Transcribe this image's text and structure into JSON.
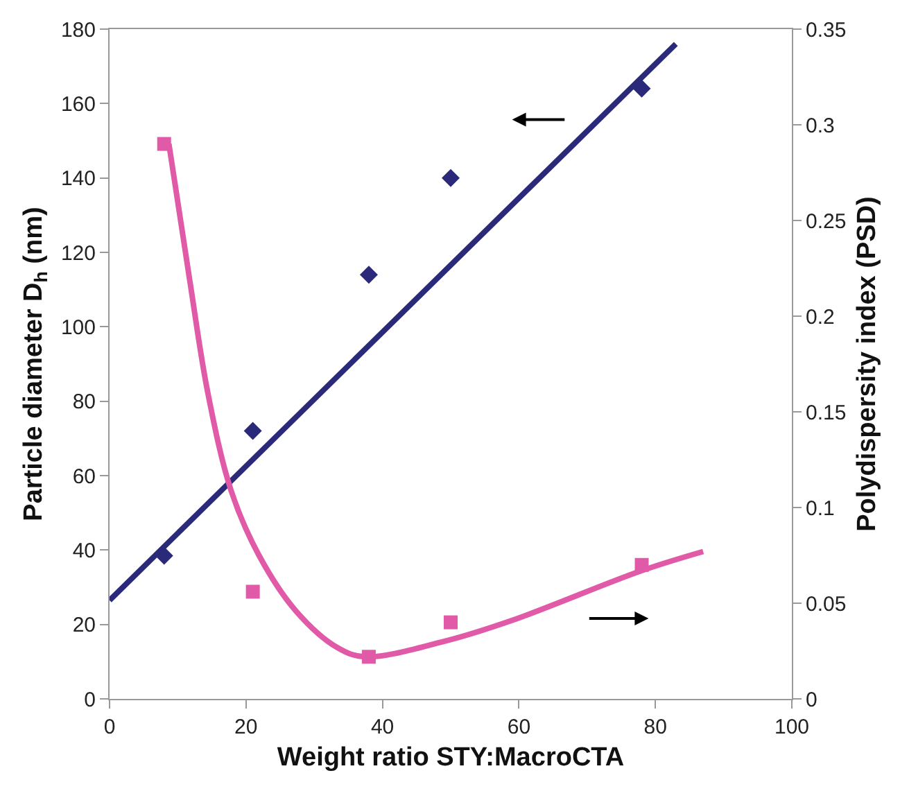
{
  "chart_data": {
    "type": "scatter",
    "xlabel": "Weight ratio STY:MacroCTA",
    "ylabel": "Particle diameter D$_{h}$ (nm)",
    "y2label": "Polydispersity index (PSD)",
    "xlim": [
      0,
      100
    ],
    "xticks": [
      0,
      20,
      40,
      60,
      80,
      100
    ],
    "ylim": [
      0,
      180
    ],
    "yticks": [
      0,
      20,
      40,
      60,
      80,
      100,
      120,
      140,
      160,
      180
    ],
    "y2lim": [
      0,
      0.35
    ],
    "y2ticks": [
      0,
      0.05,
      0.1,
      0.15,
      0.2,
      0.25,
      0.3,
      0.35
    ],
    "series": [
      {
        "marker": "diamond",
        "color": "#2b2a7a",
        "x": [
          8,
          21,
          38,
          50,
          78
        ],
        "values": [
          38.5,
          72,
          114,
          140,
          164
        ]
      },
      {
        "type": "line",
        "color": "#2b2a7a",
        "x": [
          0,
          83
        ],
        "values": [
          26.5,
          176
        ]
      },
      {
        "marker": "square",
        "color": "#e05aa8",
        "axis": "y2",
        "x": [
          8,
          21,
          38,
          50,
          78
        ],
        "values": [
          0.29,
          0.056,
          0.022,
          0.04,
          0.07
        ]
      },
      {
        "type": "line",
        "color": "#e05aa8",
        "axis": "y2",
        "x": [
          8.7,
          11.7,
          14.4,
          17.8,
          21.9,
          27.3,
          33.3,
          37.4,
          49,
          59,
          78,
          87
        ],
        "values": [
          0.29,
          0.22,
          0.16,
          0.109,
          0.075,
          0.046,
          0.027,
          0.022,
          0.03,
          0.041,
          0.067,
          0.077
        ]
      }
    ]
  }
}
